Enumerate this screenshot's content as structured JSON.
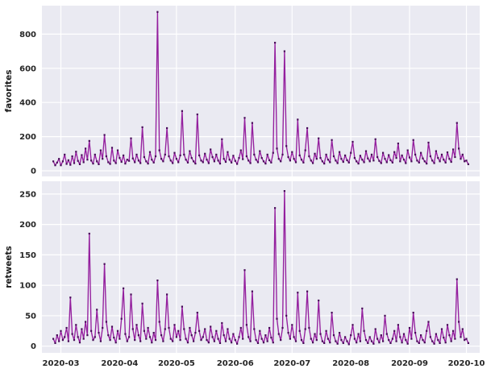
{
  "style": {
    "figure_bg": "#ffffff",
    "axes_bg": "#eaeaf2",
    "grid_color": "#ffffff",
    "line_color": "#941f9e",
    "marker_color": "#470c58",
    "tick_label_color": "#262626"
  },
  "chart_data": [
    {
      "type": "line",
      "title": "",
      "xlabel": "",
      "ylabel": "favorites",
      "grid": true,
      "legend": "none",
      "yticks": [
        0,
        200,
        400,
        600,
        800
      ],
      "ylim": [
        -33,
        967
      ],
      "xlim": [
        -6,
        225
      ],
      "show_x_tick_labels": false,
      "x_ticks": [
        {
          "label": "2020-03",
          "day": 4
        },
        {
          "label": "2020-04",
          "day": 35
        },
        {
          "label": "2020-05",
          "day": 65
        },
        {
          "label": "2020-06",
          "day": 96
        },
        {
          "label": "2020-07",
          "day": 126
        },
        {
          "label": "2020-08",
          "day": 157
        },
        {
          "label": "2020-09",
          "day": 188
        },
        {
          "label": "2020-10",
          "day": 218
        }
      ],
      "series": [
        {
          "name": "favorites",
          "start_date": "2020-02-26",
          "frequency": "daily",
          "values": [
            55,
            32,
            48,
            70,
            32,
            55,
            95,
            40,
            62,
            35,
            85,
            45,
            112,
            58,
            38,
            92,
            50,
            130,
            65,
            175,
            60,
            42,
            95,
            55,
            38,
            120,
            70,
            210,
            85,
            50,
            40,
            135,
            60,
            45,
            120,
            75,
            52,
            90,
            42,
            65,
            58,
            190,
            72,
            50,
            95,
            60,
            45,
            255,
            80,
            55,
            42,
            110,
            65,
            48,
            85,
            930,
            120,
            70,
            55,
            95,
            250,
            85,
            60,
            45,
            105,
            70,
            50,
            90,
            350,
            95,
            65,
            48,
            115,
            75,
            55,
            42,
            330,
            90,
            60,
            50,
            100,
            65,
            45,
            125,
            80,
            55,
            95,
            60,
            42,
            185,
            70,
            52,
            110,
            65,
            48,
            88,
            58,
            40,
            75,
            120,
            68,
            310,
            85,
            60,
            45,
            280,
            95,
            65,
            50,
            115,
            75,
            55,
            42,
            95,
            62,
            48,
            105,
            750,
            130,
            70,
            55,
            95,
            700,
            145,
            80,
            60,
            110,
            70,
            50,
            300,
            90,
            65,
            48,
            120,
            250,
            85,
            60,
            45,
            100,
            70,
            190,
            75,
            55,
            42,
            95,
            65,
            50,
            180,
            85,
            60,
            45,
            110,
            70,
            52,
            90,
            62,
            48,
            105,
            170,
            75,
            55,
            42,
            88,
            65,
            50,
            115,
            72,
            55,
            95,
            60,
            185,
            80,
            58,
            45,
            105,
            70,
            50,
            92,
            62,
            48,
            110,
            75,
            160,
            55,
            90,
            65,
            45,
            120,
            78,
            55,
            180,
            95,
            60,
            48,
            105,
            72,
            55,
            42,
            165,
            85,
            60,
            45,
            115,
            75,
            55,
            95,
            65,
            48,
            108,
            70,
            52,
            125,
            80,
            280,
            130,
            70,
            95,
            55,
            60,
            38
          ]
        }
      ]
    },
    {
      "type": "line",
      "title": "",
      "xlabel": "",
      "ylabel": "retweets",
      "grid": true,
      "legend": "none",
      "yticks": [
        0,
        50,
        100,
        150,
        200,
        250
      ],
      "ylim": [
        -11,
        271
      ],
      "xlim": [
        -6,
        225
      ],
      "show_x_tick_labels": true,
      "x_ticks": [
        {
          "label": "2020-03",
          "day": 4
        },
        {
          "label": "2020-04",
          "day": 35
        },
        {
          "label": "2020-05",
          "day": 65
        },
        {
          "label": "2020-06",
          "day": 96
        },
        {
          "label": "2020-07",
          "day": 126
        },
        {
          "label": "2020-08",
          "day": 157
        },
        {
          "label": "2020-09",
          "day": 188
        },
        {
          "label": "2020-10",
          "day": 218
        }
      ],
      "series": [
        {
          "name": "retweets",
          "start_date": "2020-02-26",
          "frequency": "daily",
          "values": [
            12,
            5,
            18,
            8,
            25,
            10,
            15,
            30,
            8,
            80,
            20,
            10,
            35,
            15,
            6,
            28,
            12,
            40,
            18,
            185,
            25,
            10,
            15,
            60,
            22,
            8,
            30,
            135,
            40,
            18,
            10,
            32,
            14,
            6,
            25,
            12,
            45,
            95,
            20,
            8,
            15,
            85,
            28,
            10,
            35,
            18,
            8,
            70,
            25,
            12,
            30,
            15,
            6,
            22,
            10,
            108,
            40,
            18,
            8,
            28,
            85,
            30,
            12,
            8,
            35,
            15,
            25,
            10,
            65,
            28,
            12,
            6,
            30,
            18,
            8,
            22,
            55,
            25,
            10,
            15,
            28,
            10,
            6,
            32,
            15,
            8,
            25,
            12,
            5,
            38,
            18,
            8,
            28,
            12,
            6,
            20,
            10,
            4,
            15,
            30,
            12,
            125,
            35,
            15,
            8,
            90,
            28,
            10,
            5,
            25,
            12,
            6,
            18,
            8,
            30,
            14,
            6,
            227,
            45,
            20,
            10,
            30,
            255,
            50,
            22,
            12,
            35,
            15,
            8,
            88,
            25,
            10,
            5,
            28,
            90,
            30,
            12,
            6,
            20,
            10,
            75,
            20,
            8,
            5,
            25,
            12,
            6,
            55,
            18,
            8,
            4,
            22,
            10,
            5,
            15,
            8,
            3,
            18,
            35,
            12,
            6,
            20,
            8,
            62,
            25,
            10,
            5,
            15,
            8,
            4,
            28,
            12,
            6,
            18,
            8,
            50,
            20,
            10,
            5,
            12,
            25,
            8,
            35,
            15,
            6,
            20,
            10,
            4,
            30,
            12,
            55,
            22,
            8,
            5,
            18,
            10,
            6,
            25,
            40,
            15,
            8,
            4,
            20,
            10,
            5,
            28,
            14,
            6,
            35,
            18,
            8,
            25,
            12,
            110,
            40,
            15,
            28,
            10,
            12,
            5
          ]
        }
      ]
    }
  ]
}
